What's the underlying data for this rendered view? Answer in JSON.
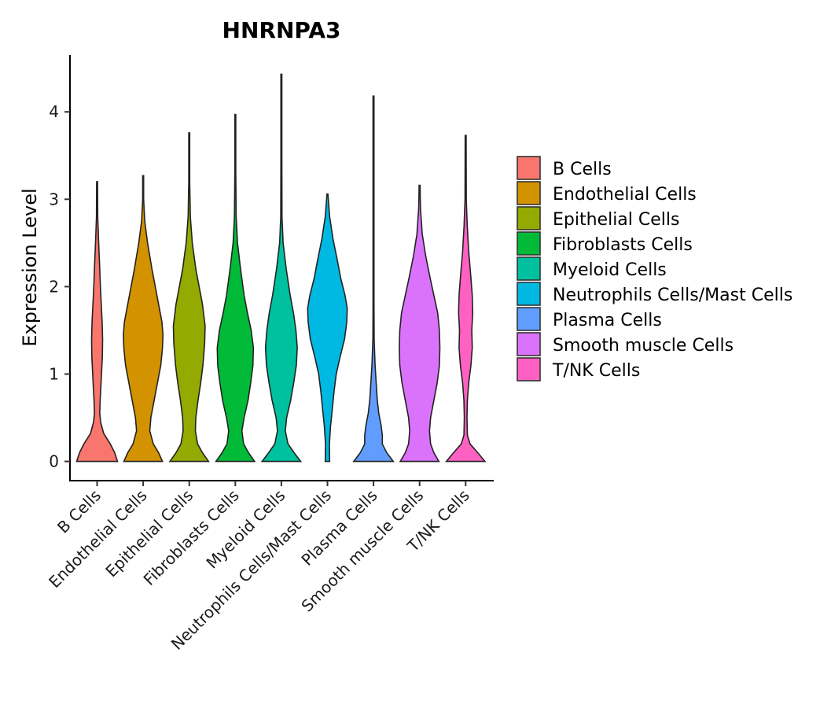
{
  "chart_data": {
    "type": "violin",
    "title": "HNRNPA3",
    "xlabel": "",
    "ylabel": "Expression Level",
    "ylim": [
      -0.22,
      4.65
    ],
    "yticks": [
      "0",
      "1",
      "2",
      "3",
      "4"
    ],
    "ytick_values": [
      0,
      1,
      2,
      3,
      4
    ],
    "grid": false,
    "legend_position": "right",
    "categories": [
      "B Cells",
      "Endothelial Cells",
      "Epithelial Cells",
      "Fibroblasts Cells",
      "Myeloid Cells",
      "Neutrophils Cells/Mast Cells",
      "Plasma Cells",
      "Smooth muscle Cells",
      "T/NK Cells"
    ],
    "colors": [
      "#F8766D",
      "#D39200",
      "#93AA00",
      "#00BA38",
      "#00C19F",
      "#00B9E3",
      "#619CFF",
      "#DB72FB",
      "#FF61C3"
    ],
    "series": [
      {
        "name": "B Cells",
        "max": 3.2,
        "profile": [
          [
            0,
            0.93
          ],
          [
            0.1,
            0.8
          ],
          [
            0.2,
            0.6
          ],
          [
            0.32,
            0.3
          ],
          [
            0.45,
            0.16
          ],
          [
            0.55,
            0.12
          ],
          [
            0.7,
            0.14
          ],
          [
            0.85,
            0.17
          ],
          [
            1.0,
            0.2
          ],
          [
            1.2,
            0.24
          ],
          [
            1.4,
            0.25
          ],
          [
            1.6,
            0.23
          ],
          [
            1.8,
            0.19
          ],
          [
            2.0,
            0.15
          ],
          [
            2.2,
            0.12
          ],
          [
            2.5,
            0.07
          ],
          [
            2.8,
            0.03
          ],
          [
            3.2,
            0.0
          ]
        ]
      },
      {
        "name": "Endothelial Cells",
        "max": 3.27,
        "profile": [
          [
            0,
            0.88
          ],
          [
            0.1,
            0.7
          ],
          [
            0.2,
            0.46
          ],
          [
            0.35,
            0.3
          ],
          [
            0.5,
            0.35
          ],
          [
            0.7,
            0.5
          ],
          [
            0.9,
            0.65
          ],
          [
            1.1,
            0.8
          ],
          [
            1.3,
            0.88
          ],
          [
            1.45,
            0.9
          ],
          [
            1.6,
            0.85
          ],
          [
            1.8,
            0.7
          ],
          [
            2.0,
            0.55
          ],
          [
            2.2,
            0.4
          ],
          [
            2.5,
            0.2
          ],
          [
            2.75,
            0.07
          ],
          [
            3.0,
            0.02
          ],
          [
            3.27,
            0.0
          ]
        ]
      },
      {
        "name": "Epithelial Cells",
        "max": 3.76,
        "profile": [
          [
            0,
            0.88
          ],
          [
            0.1,
            0.6
          ],
          [
            0.2,
            0.38
          ],
          [
            0.35,
            0.28
          ],
          [
            0.5,
            0.3
          ],
          [
            0.7,
            0.4
          ],
          [
            0.9,
            0.52
          ],
          [
            1.1,
            0.62
          ],
          [
            1.35,
            0.7
          ],
          [
            1.55,
            0.72
          ],
          [
            1.8,
            0.6
          ],
          [
            2.0,
            0.45
          ],
          [
            2.2,
            0.3
          ],
          [
            2.5,
            0.14
          ],
          [
            2.8,
            0.05
          ],
          [
            3.2,
            0.02
          ],
          [
            3.76,
            0.0
          ]
        ]
      },
      {
        "name": "Fibroblasts Cells",
        "max": 3.97,
        "profile": [
          [
            0,
            0.88
          ],
          [
            0.1,
            0.6
          ],
          [
            0.2,
            0.38
          ],
          [
            0.35,
            0.3
          ],
          [
            0.5,
            0.4
          ],
          [
            0.7,
            0.58
          ],
          [
            0.9,
            0.7
          ],
          [
            1.1,
            0.8
          ],
          [
            1.3,
            0.82
          ],
          [
            1.5,
            0.72
          ],
          [
            1.7,
            0.55
          ],
          [
            1.9,
            0.4
          ],
          [
            2.2,
            0.24
          ],
          [
            2.5,
            0.1
          ],
          [
            2.8,
            0.04
          ],
          [
            3.3,
            0.02
          ],
          [
            3.97,
            0.0
          ]
        ]
      },
      {
        "name": "Myeloid Cells",
        "max": 4.43,
        "profile": [
          [
            0,
            0.88
          ],
          [
            0.1,
            0.58
          ],
          [
            0.2,
            0.3
          ],
          [
            0.35,
            0.18
          ],
          [
            0.5,
            0.24
          ],
          [
            0.7,
            0.42
          ],
          [
            0.9,
            0.56
          ],
          [
            1.1,
            0.68
          ],
          [
            1.3,
            0.72
          ],
          [
            1.5,
            0.66
          ],
          [
            1.7,
            0.55
          ],
          [
            1.9,
            0.4
          ],
          [
            2.2,
            0.22
          ],
          [
            2.5,
            0.08
          ],
          [
            2.8,
            0.03
          ],
          [
            3.5,
            0.01
          ],
          [
            4.43,
            0.0
          ]
        ]
      },
      {
        "name": "Neutrophils Cells/Mast Cells",
        "max": 3.06,
        "profile": [
          [
            0,
            0.1
          ],
          [
            0.2,
            0.09
          ],
          [
            0.4,
            0.14
          ],
          [
            0.6,
            0.22
          ],
          [
            0.8,
            0.3
          ],
          [
            1.0,
            0.4
          ],
          [
            1.2,
            0.58
          ],
          [
            1.4,
            0.78
          ],
          [
            1.6,
            0.88
          ],
          [
            1.75,
            0.9
          ],
          [
            1.9,
            0.8
          ],
          [
            2.1,
            0.6
          ],
          [
            2.3,
            0.45
          ],
          [
            2.55,
            0.25
          ],
          [
            2.8,
            0.1
          ],
          [
            3.06,
            0.0
          ]
        ]
      },
      {
        "name": "Plasma Cells",
        "max": 4.18,
        "profile": [
          [
            0,
            0.9
          ],
          [
            0.1,
            0.6
          ],
          [
            0.2,
            0.4
          ],
          [
            0.3,
            0.4
          ],
          [
            0.42,
            0.34
          ],
          [
            0.55,
            0.24
          ],
          [
            0.7,
            0.17
          ],
          [
            0.9,
            0.12
          ],
          [
            1.1,
            0.07
          ],
          [
            1.4,
            0.03
          ],
          [
            1.8,
            0.02
          ],
          [
            2.5,
            0.01
          ],
          [
            4.18,
            0.0
          ]
        ]
      },
      {
        "name": "Smooth muscle Cells",
        "max": 3.16,
        "profile": [
          [
            0,
            0.88
          ],
          [
            0.1,
            0.65
          ],
          [
            0.2,
            0.5
          ],
          [
            0.35,
            0.45
          ],
          [
            0.5,
            0.5
          ],
          [
            0.7,
            0.65
          ],
          [
            0.9,
            0.8
          ],
          [
            1.1,
            0.9
          ],
          [
            1.3,
            0.92
          ],
          [
            1.5,
            0.9
          ],
          [
            1.7,
            0.82
          ],
          [
            1.9,
            0.65
          ],
          [
            2.1,
            0.48
          ],
          [
            2.35,
            0.28
          ],
          [
            2.6,
            0.12
          ],
          [
            2.9,
            0.04
          ],
          [
            3.16,
            0.0
          ]
        ]
      },
      {
        "name": "T/NK Cells",
        "max": 3.73,
        "profile": [
          [
            0,
            0.88
          ],
          [
            0.1,
            0.55
          ],
          [
            0.2,
            0.2
          ],
          [
            0.3,
            0.08
          ],
          [
            0.5,
            0.06
          ],
          [
            0.7,
            0.08
          ],
          [
            0.9,
            0.14
          ],
          [
            1.1,
            0.24
          ],
          [
            1.3,
            0.3
          ],
          [
            1.5,
            0.28
          ],
          [
            1.7,
            0.32
          ],
          [
            1.9,
            0.3
          ],
          [
            2.1,
            0.24
          ],
          [
            2.4,
            0.14
          ],
          [
            2.7,
            0.07
          ],
          [
            3.0,
            0.03
          ],
          [
            3.73,
            0.0
          ]
        ]
      }
    ]
  }
}
